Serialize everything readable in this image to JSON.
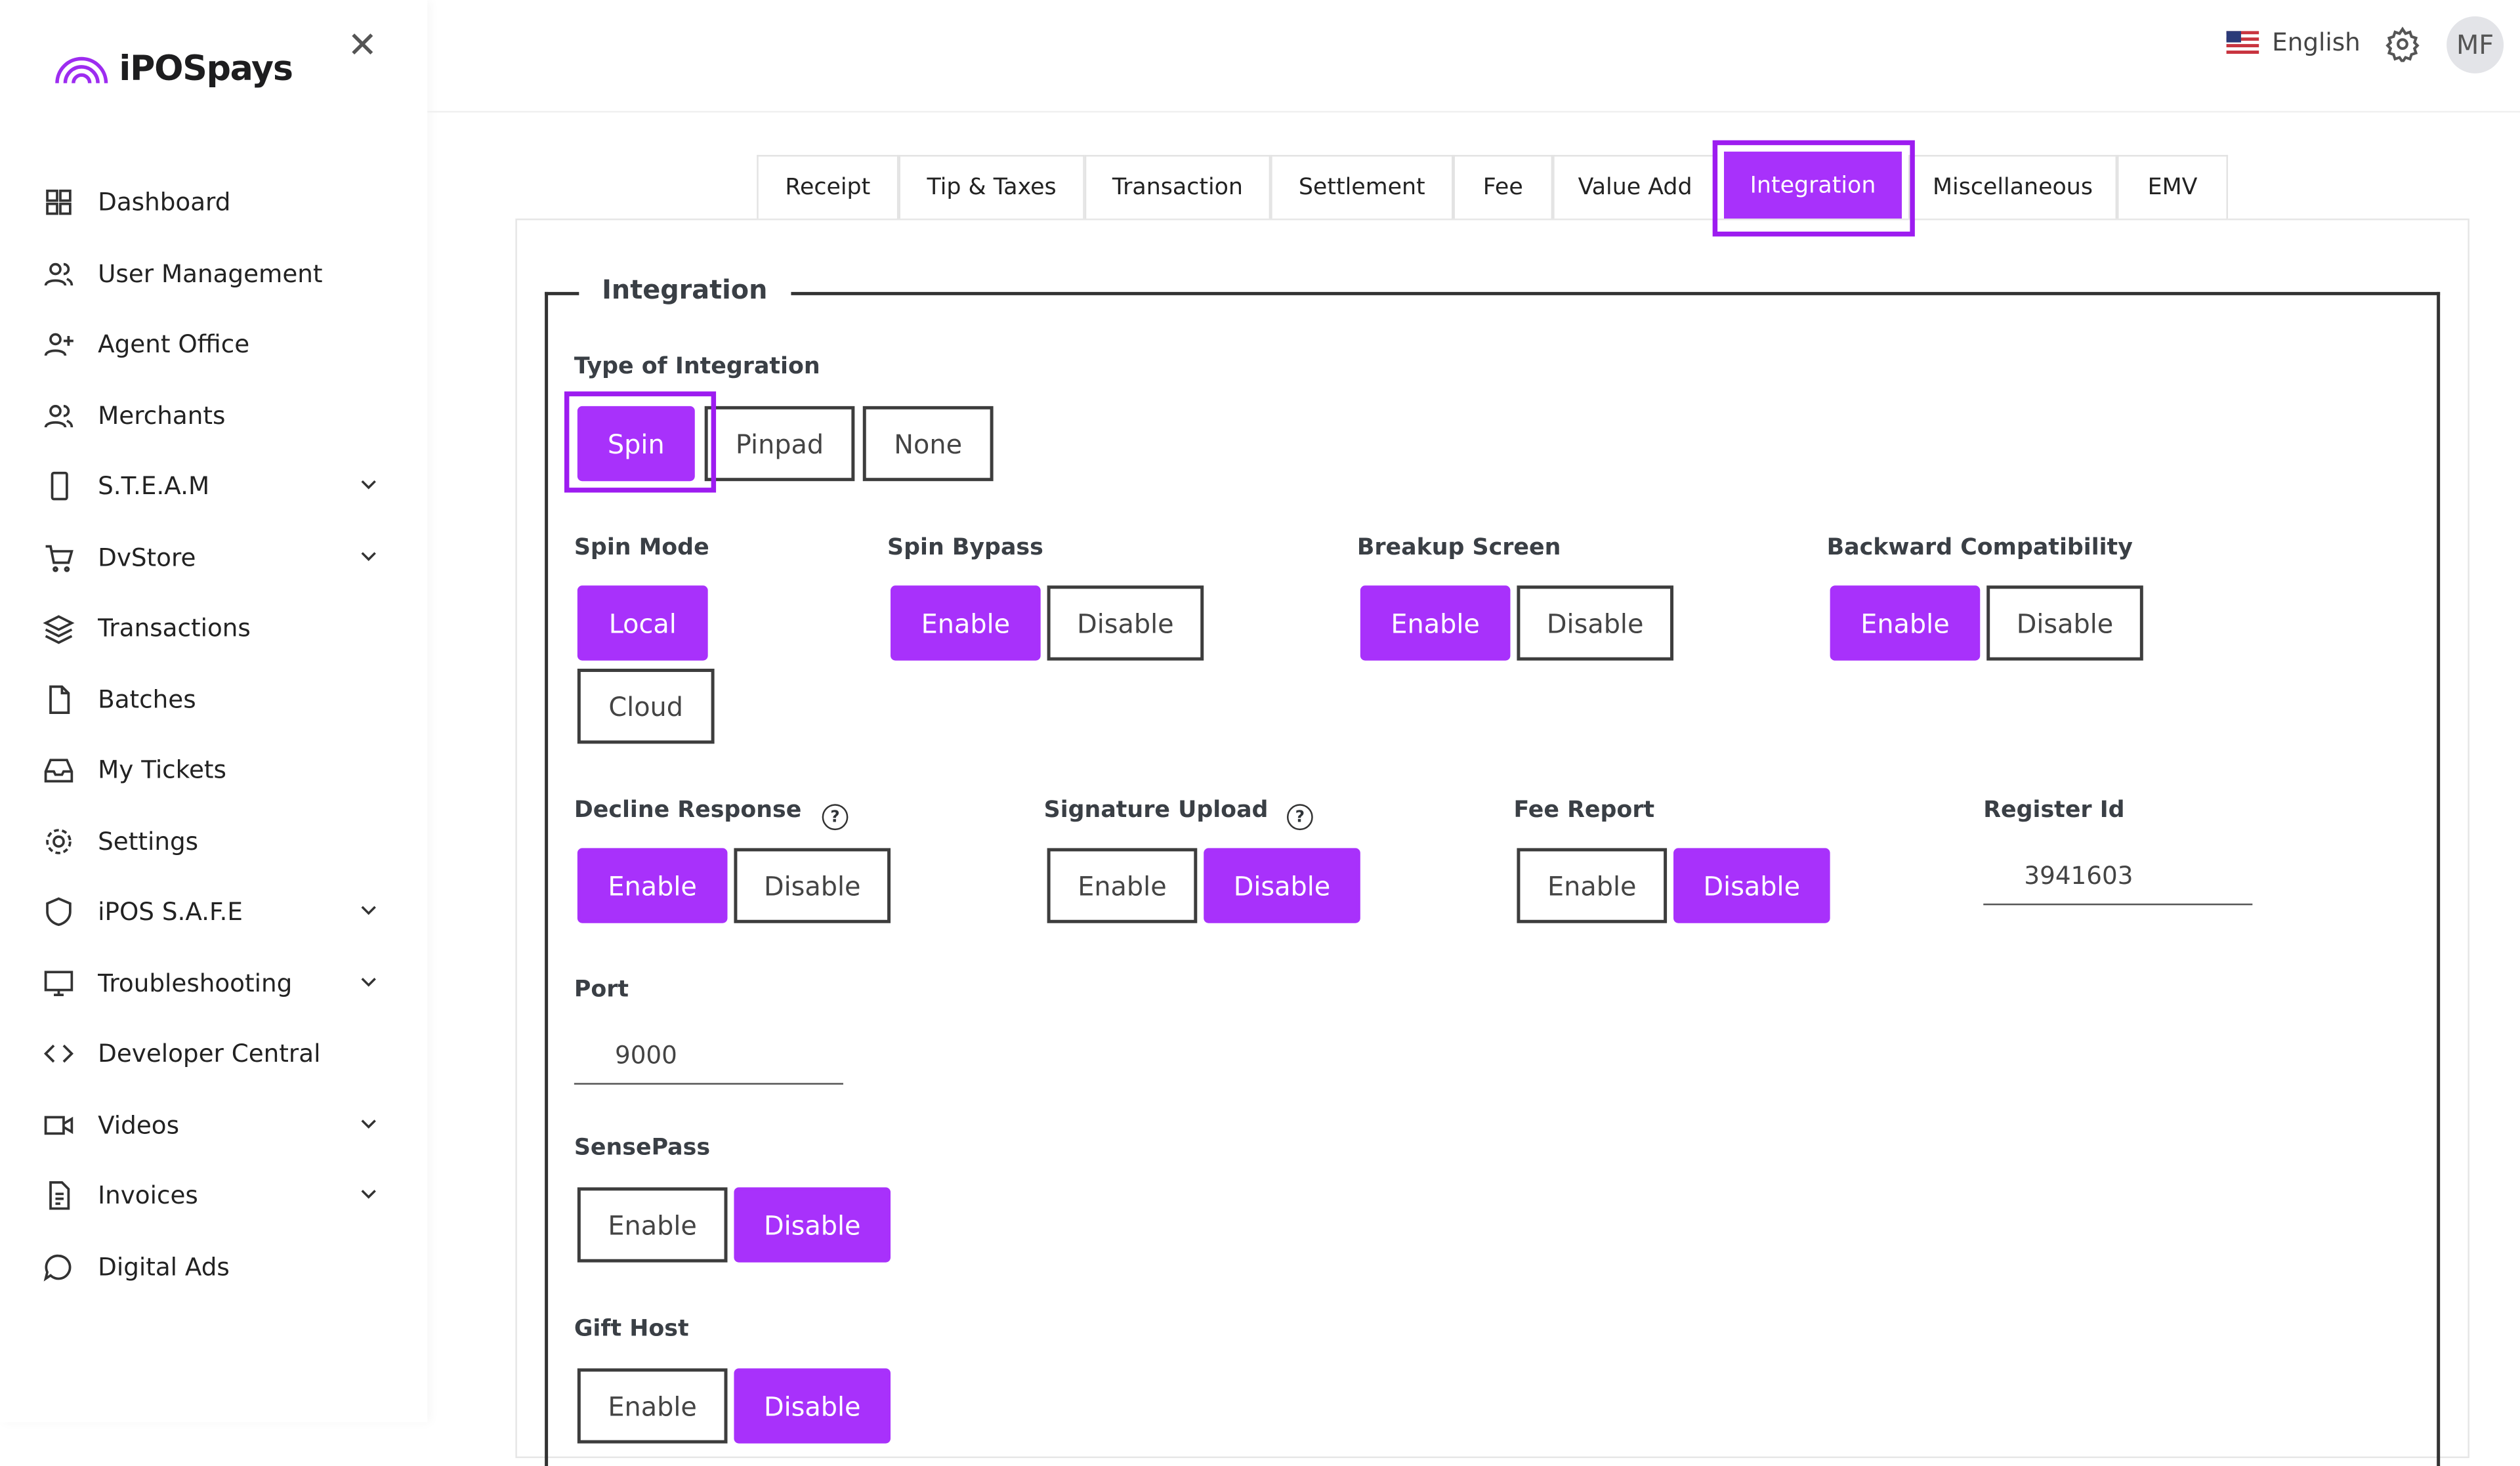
{
  "brand": {
    "name": "iPOSpays",
    "accent": "#a831fb"
  },
  "sidebar": {
    "items": [
      {
        "label": "Dashboard",
        "icon": "grid-icon",
        "chevron": false
      },
      {
        "label": "User Management",
        "icon": "users-icon",
        "chevron": false
      },
      {
        "label": "Agent Office",
        "icon": "user-plus-icon",
        "chevron": false
      },
      {
        "label": "Merchants",
        "icon": "users-icon",
        "chevron": false
      },
      {
        "label": "S.T.E.A.M",
        "icon": "phone-icon",
        "chevron": true
      },
      {
        "label": "DvStore",
        "icon": "cart-icon",
        "chevron": true
      },
      {
        "label": "Transactions",
        "icon": "layers-icon",
        "chevron": false
      },
      {
        "label": "Batches",
        "icon": "file-icon",
        "chevron": false
      },
      {
        "label": "My Tickets",
        "icon": "inbox-icon",
        "chevron": false
      },
      {
        "label": "Settings",
        "icon": "gear-icon",
        "chevron": false
      },
      {
        "label": "iPOS S.A.F.E",
        "icon": "shield-icon",
        "chevron": true
      },
      {
        "label": "Troubleshooting",
        "icon": "monitor-icon",
        "chevron": true
      },
      {
        "label": "Developer Central",
        "icon": "code-icon",
        "chevron": false
      },
      {
        "label": "Videos",
        "icon": "video-icon",
        "chevron": true
      },
      {
        "label": "Invoices",
        "icon": "document-icon",
        "chevron": true
      },
      {
        "label": "Digital Ads",
        "icon": "chat-icon",
        "chevron": false
      }
    ]
  },
  "topbar": {
    "language": "English",
    "avatar": "MF"
  },
  "tabs": [
    {
      "label": "Receipt"
    },
    {
      "label": "Tip & Taxes"
    },
    {
      "label": "Transaction"
    },
    {
      "label": "Settlement"
    },
    {
      "label": "Fee"
    },
    {
      "label": "Value Add"
    },
    {
      "label": "Integration",
      "active": true
    },
    {
      "label": "Miscellaneous"
    },
    {
      "label": "EMV"
    }
  ],
  "section": {
    "legend": "Integration"
  },
  "groups": [
    {
      "label": "Type of Integration",
      "options": [
        "Spin",
        "Pinpad",
        "None"
      ],
      "selected": "Spin"
    },
    {
      "label": "Spin Mode",
      "options": [
        "Local",
        "Cloud"
      ],
      "selected": "Local"
    },
    {
      "label": "Spin Bypass",
      "options": [
        "Enable",
        "Disable"
      ],
      "selected": "Enable"
    },
    {
      "label": "Breakup Screen",
      "options": [
        "Enable",
        "Disable"
      ],
      "selected": "Enable"
    },
    {
      "label": "Backward Compatibility",
      "options": [
        "Enable",
        "Disable"
      ],
      "selected": "Enable"
    },
    {
      "label": "Decline Response",
      "options": [
        "Enable",
        "Disable"
      ],
      "selected": "Enable",
      "help": true
    },
    {
      "label": "Signature Upload",
      "options": [
        "Enable",
        "Disable"
      ],
      "selected": "Disable",
      "help": true
    },
    {
      "label": "Fee Report",
      "options": [
        "Enable",
        "Disable"
      ],
      "selected": "Disable"
    },
    {
      "label": "SensePass",
      "options": [
        "Enable",
        "Disable"
      ],
      "selected": "Disable"
    },
    {
      "label": "Gift Host",
      "options": [
        "Enable",
        "Disable"
      ],
      "selected": "Disable"
    }
  ],
  "fields": {
    "register_id": {
      "label": "Register Id",
      "value": "3941603"
    },
    "port": {
      "label": "Port",
      "value": "9000"
    }
  }
}
